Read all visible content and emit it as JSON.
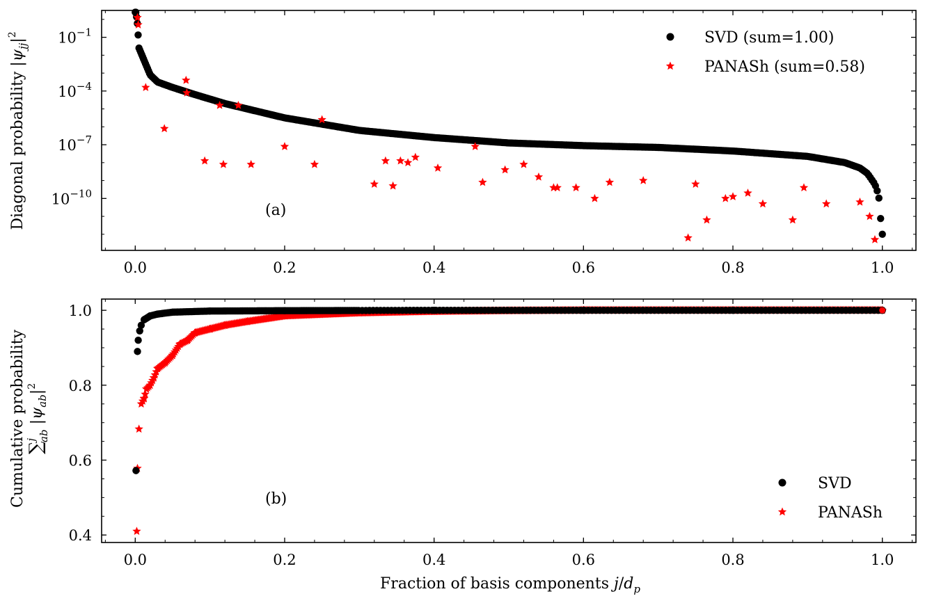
{
  "colors": {
    "svd": "#000000",
    "panash": "#ff0000"
  },
  "chart_data": [
    {
      "panel": "(a)",
      "type": "scatter",
      "xlabel": "",
      "ylabel": "Diagonal probability |ψ_jj|²",
      "xlim": [
        -0.045,
        1.045
      ],
      "ylog": true,
      "ylim_log10": [
        -12.9,
        0.5
      ],
      "xticks": [
        0.0,
        0.2,
        0.4,
        0.6,
        0.8,
        1.0
      ],
      "xtick_labels": [
        "0.0",
        "0.2",
        "0.4",
        "0.6",
        "0.8",
        "1.0"
      ],
      "yticks_log10": [
        -1,
        -4,
        -7,
        -10
      ],
      "ytick_labels": [
        {
          "base": "10",
          "exp": "−1"
        },
        {
          "base": "10",
          "exp": "−4"
        },
        {
          "base": "10",
          "exp": "−7"
        },
        {
          "base": "10",
          "exp": "−10"
        }
      ],
      "legend_position": "top-right",
      "legend": [
        {
          "marker": "circle",
          "color": "#000000",
          "label": "SVD (sum=1.00)"
        },
        {
          "marker": "star",
          "color": "#ff0000",
          "label": "PANASh (sum=0.58)"
        }
      ],
      "series": [
        {
          "name": "SVD (sum=1.00)",
          "marker": "circle",
          "color": "#000000",
          "dense_curve_log10": [
            [
              0.001,
              0.4
            ],
            [
              0.003,
              -0.3
            ],
            [
              0.005,
              -1.6
            ],
            [
              0.008,
              -1.9
            ],
            [
              0.012,
              -2.3
            ],
            [
              0.02,
              -3.1
            ],
            [
              0.03,
              -3.5
            ],
            [
              0.05,
              -3.8
            ],
            [
              0.08,
              -4.2
            ],
            [
              0.12,
              -4.7
            ],
            [
              0.16,
              -5.1
            ],
            [
              0.2,
              -5.5
            ],
            [
              0.3,
              -6.2
            ],
            [
              0.4,
              -6.6
            ],
            [
              0.5,
              -6.9
            ],
            [
              0.6,
              -7.05
            ],
            [
              0.7,
              -7.15
            ],
            [
              0.8,
              -7.35
            ],
            [
              0.9,
              -7.65
            ],
            [
              0.95,
              -8.0
            ],
            [
              0.97,
              -8.3
            ],
            [
              0.98,
              -8.6
            ],
            [
              0.99,
              -9.2
            ],
            [
              0.995,
              -9.8
            ],
            [
              0.997,
              -10.7
            ],
            [
              0.998,
              -11.3
            ],
            [
              1.0,
              -12.0
            ]
          ]
        },
        {
          "name": "PANASh (sum=0.58)",
          "marker": "star",
          "color": "#ff0000",
          "points_log10": [
            [
              0.003,
              0.1
            ],
            [
              0.004,
              -0.3
            ],
            [
              0.014,
              -3.8
            ],
            [
              0.039,
              -6.1
            ],
            [
              0.068,
              -3.4
            ],
            [
              0.069,
              -4.1
            ],
            [
              0.093,
              -7.9
            ],
            [
              0.113,
              -4.8
            ],
            [
              0.118,
              -8.1
            ],
            [
              0.138,
              -4.8
            ],
            [
              0.155,
              -8.1
            ],
            [
              0.2,
              -7.1
            ],
            [
              0.24,
              -8.1
            ],
            [
              0.25,
              -5.6
            ],
            [
              0.32,
              -9.2
            ],
            [
              0.335,
              -7.9
            ],
            [
              0.345,
              -9.3
            ],
            [
              0.355,
              -7.9
            ],
            [
              0.365,
              -8.0
            ],
            [
              0.375,
              -7.7
            ],
            [
              0.405,
              -8.3
            ],
            [
              0.455,
              -7.1
            ],
            [
              0.465,
              -9.1
            ],
            [
              0.495,
              -8.4
            ],
            [
              0.52,
              -8.1
            ],
            [
              0.54,
              -8.8
            ],
            [
              0.56,
              -9.4
            ],
            [
              0.565,
              -9.4
            ],
            [
              0.59,
              -9.4
            ],
            [
              0.615,
              -10.0
            ],
            [
              0.635,
              -9.1
            ],
            [
              0.68,
              -9.0
            ],
            [
              0.74,
              -12.2
            ],
            [
              0.75,
              -9.2
            ],
            [
              0.765,
              -11.2
            ],
            [
              0.79,
              -10.0
            ],
            [
              0.8,
              -9.9
            ],
            [
              0.82,
              -9.7
            ],
            [
              0.84,
              -10.3
            ],
            [
              0.88,
              -11.2
            ],
            [
              0.895,
              -9.4
            ],
            [
              0.925,
              -10.3
            ],
            [
              0.97,
              -10.2
            ],
            [
              0.983,
              -11.0
            ],
            [
              0.99,
              -12.3
            ]
          ]
        }
      ]
    },
    {
      "panel": "(b)",
      "type": "scatter",
      "xlabel": "Fraction of basis components j/d_p",
      "ylabel": "Cumulative probability Σ_ab^j |ψ_ab|²",
      "xlim": [
        -0.045,
        1.045
      ],
      "ylim": [
        0.38,
        1.03
      ],
      "xticks": [
        0.0,
        0.2,
        0.4,
        0.6,
        0.8,
        1.0
      ],
      "xtick_labels": [
        "0.0",
        "0.2",
        "0.4",
        "0.6",
        "0.8",
        "1.0"
      ],
      "yticks": [
        0.4,
        0.6,
        0.8,
        1.0
      ],
      "ytick_labels": [
        "0.4",
        "0.6",
        "0.8",
        "1.0"
      ],
      "legend_position": "bottom-right",
      "legend": [
        {
          "marker": "circle",
          "color": "#000000",
          "label": "SVD"
        },
        {
          "marker": "star",
          "color": "#ff0000",
          "label": "PANASh"
        }
      ],
      "series": [
        {
          "name": "SVD",
          "marker": "circle",
          "color": "#000000",
          "points": [
            [
              0.001,
              0.572
            ],
            [
              0.003,
              0.89
            ],
            [
              0.004,
              0.92
            ],
            [
              0.006,
              0.945
            ],
            [
              0.008,
              0.96
            ],
            [
              0.012,
              0.975
            ],
            [
              0.02,
              0.985
            ],
            [
              0.03,
              0.99
            ],
            [
              0.05,
              0.995
            ],
            [
              0.1,
              0.998
            ],
            [
              0.2,
              0.999
            ],
            [
              0.4,
              1.0
            ],
            [
              0.6,
              1.0
            ],
            [
              0.8,
              1.0
            ],
            [
              1.0,
              1.0
            ]
          ],
          "dense_range": [
            0.0,
            1.0
          ]
        },
        {
          "name": "PANASh",
          "marker": "star",
          "color": "#ff0000",
          "points": [
            [
              0.002,
              0.41
            ],
            [
              0.003,
              0.578
            ],
            [
              0.005,
              0.683
            ],
            [
              0.008,
              0.75
            ],
            [
              0.012,
              0.765
            ],
            [
              0.015,
              0.79
            ],
            [
              0.02,
              0.8
            ],
            [
              0.025,
              0.82
            ],
            [
              0.03,
              0.845
            ],
            [
              0.04,
              0.86
            ],
            [
              0.05,
              0.88
            ],
            [
              0.06,
              0.91
            ],
            [
              0.07,
              0.92
            ],
            [
              0.08,
              0.94
            ],
            [
              0.1,
              0.95
            ],
            [
              0.12,
              0.96
            ],
            [
              0.15,
              0.97
            ],
            [
              0.2,
              0.985
            ],
            [
              0.3,
              0.993
            ],
            [
              0.4,
              0.997
            ],
            [
              0.5,
              0.999
            ],
            [
              0.6,
              1.0
            ],
            [
              0.8,
              1.0
            ],
            [
              1.0,
              1.0
            ]
          ],
          "dense_range": [
            0.0,
            1.0
          ]
        }
      ]
    }
  ]
}
